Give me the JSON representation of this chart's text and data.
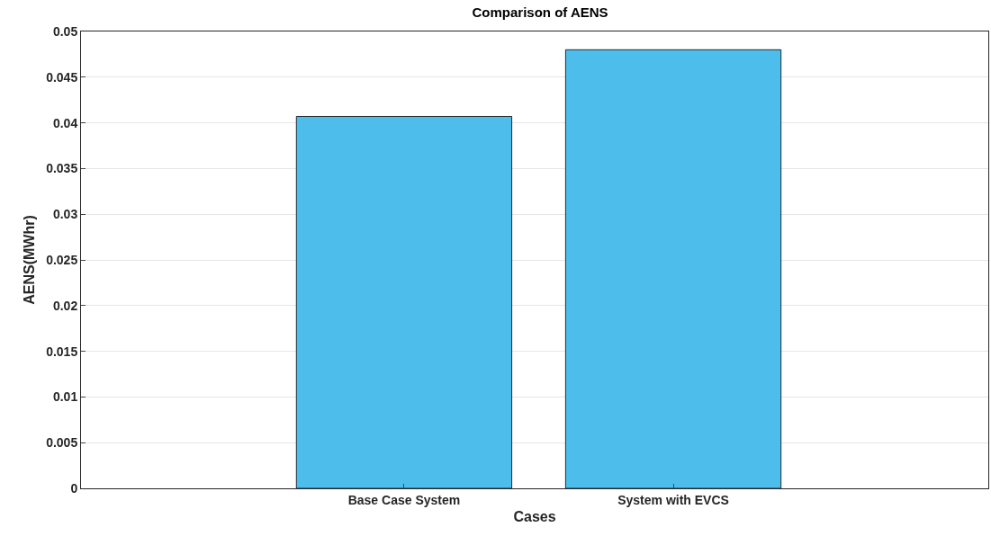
{
  "chart_data": {
    "type": "bar",
    "title": "Comparison of AENS",
    "xlabel": "Cases",
    "ylabel": "AENS(MWhr)",
    "categories": [
      "Base Case System",
      "System with EVCS"
    ],
    "values": [
      0.0407,
      0.048
    ],
    "color": "#4dbeeb",
    "ylim": [
      0,
      0.05
    ],
    "yticks": [
      0,
      0.005,
      0.01,
      0.015,
      0.02,
      0.025,
      0.03,
      0.035,
      0.04,
      0.045,
      0.05
    ],
    "grid": "y"
  }
}
